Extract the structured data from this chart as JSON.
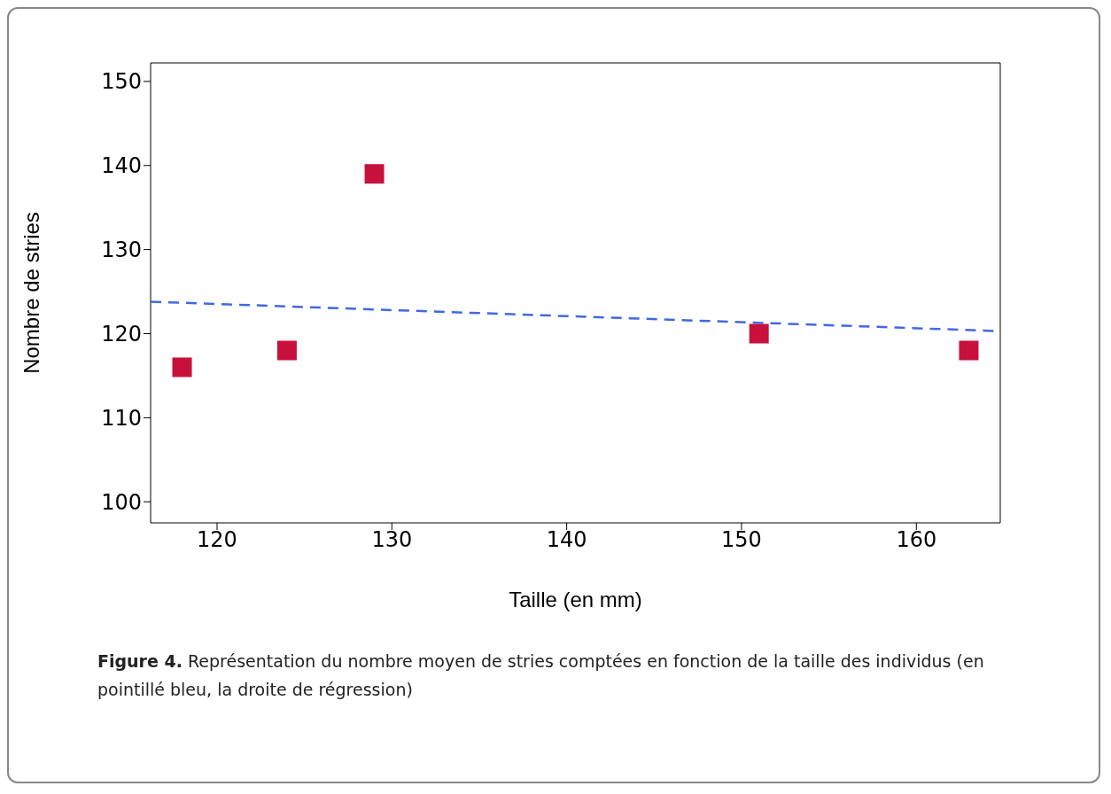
{
  "chart_data": {
    "type": "scatter",
    "xlabel": "Taille (en mm)",
    "ylabel": "Nombre de stries",
    "xlim": [
      116.2,
      164.8
    ],
    "xticks": [
      120,
      130,
      140,
      150,
      160
    ],
    "ylim": [
      97.5,
      152.2
    ],
    "yticks": [
      100,
      110,
      120,
      130,
      140,
      150
    ],
    "grid": false,
    "series": [
      {
        "marker": "square",
        "color": "#c8103c",
        "x": [
          118,
          124,
          129,
          151,
          163
        ],
        "values": [
          116,
          118,
          139,
          120,
          118
        ]
      },
      {
        "type": "line",
        "marker": "none",
        "line_style": "dashed",
        "color": "#4169e1",
        "x": [
          116.2,
          164.8
        ],
        "values": [
          123.8,
          120.3
        ]
      }
    ],
    "annotations": [
      "Figure 4. Représentation du nombre moyen de stries comptées en fonction de la taille des individus (en pointillé bleu, la droite de régression)"
    ]
  }
}
